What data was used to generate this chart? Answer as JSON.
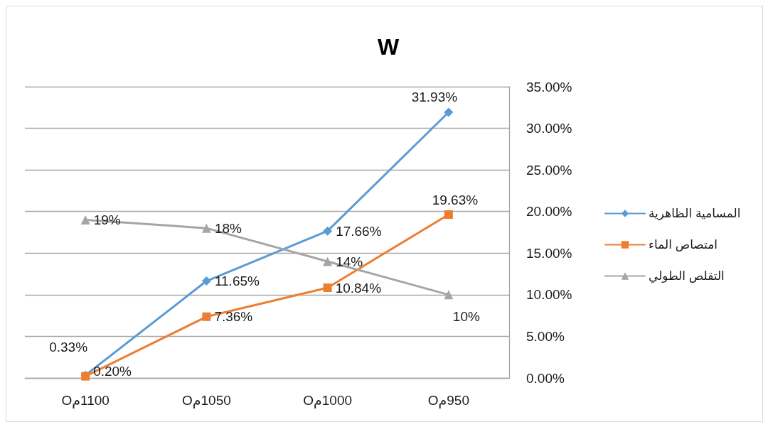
{
  "chart_data": {
    "type": "line",
    "title": "W",
    "categories": [
      "1100مO",
      "1050مO",
      "1000مO",
      "950مO"
    ],
    "series": [
      {
        "name": "المسامية الظاهرية",
        "color": "#5b9bd5",
        "marker": "diamond",
        "values": [
          0.33,
          11.65,
          17.66,
          31.93
        ],
        "value_labels": [
          "0.33%",
          "11.65%",
          "17.66%",
          "31.93%"
        ]
      },
      {
        "name": "امتصاص الماء",
        "color": "#ed7d31",
        "marker": "square",
        "values": [
          0.2,
          7.36,
          10.84,
          19.63
        ],
        "value_labels": [
          "0.20%",
          "7.36%",
          "10.84%",
          "19.63%"
        ]
      },
      {
        "name": "التقلص الطولي",
        "color": "#a5a5a5",
        "marker": "triangle",
        "values": [
          19,
          18,
          14,
          10
        ],
        "value_labels": [
          "19%",
          "18%",
          "14%",
          "10%"
        ]
      }
    ],
    "ylim": [
      0,
      35
    ],
    "yticks": [
      {
        "value": 0,
        "label": "0.00%"
      },
      {
        "value": 5,
        "label": "5.00%"
      },
      {
        "value": 10,
        "label": "10.00%"
      },
      {
        "value": 15,
        "label": "15.00%"
      },
      {
        "value": 20,
        "label": "20.00%"
      },
      {
        "value": 25,
        "label": "25.00%"
      },
      {
        "value": 30,
        "label": "30.00%"
      },
      {
        "value": 35,
        "label": "35.00%"
      }
    ],
    "grid": "y",
    "legend": "right",
    "line_style": "solid"
  }
}
